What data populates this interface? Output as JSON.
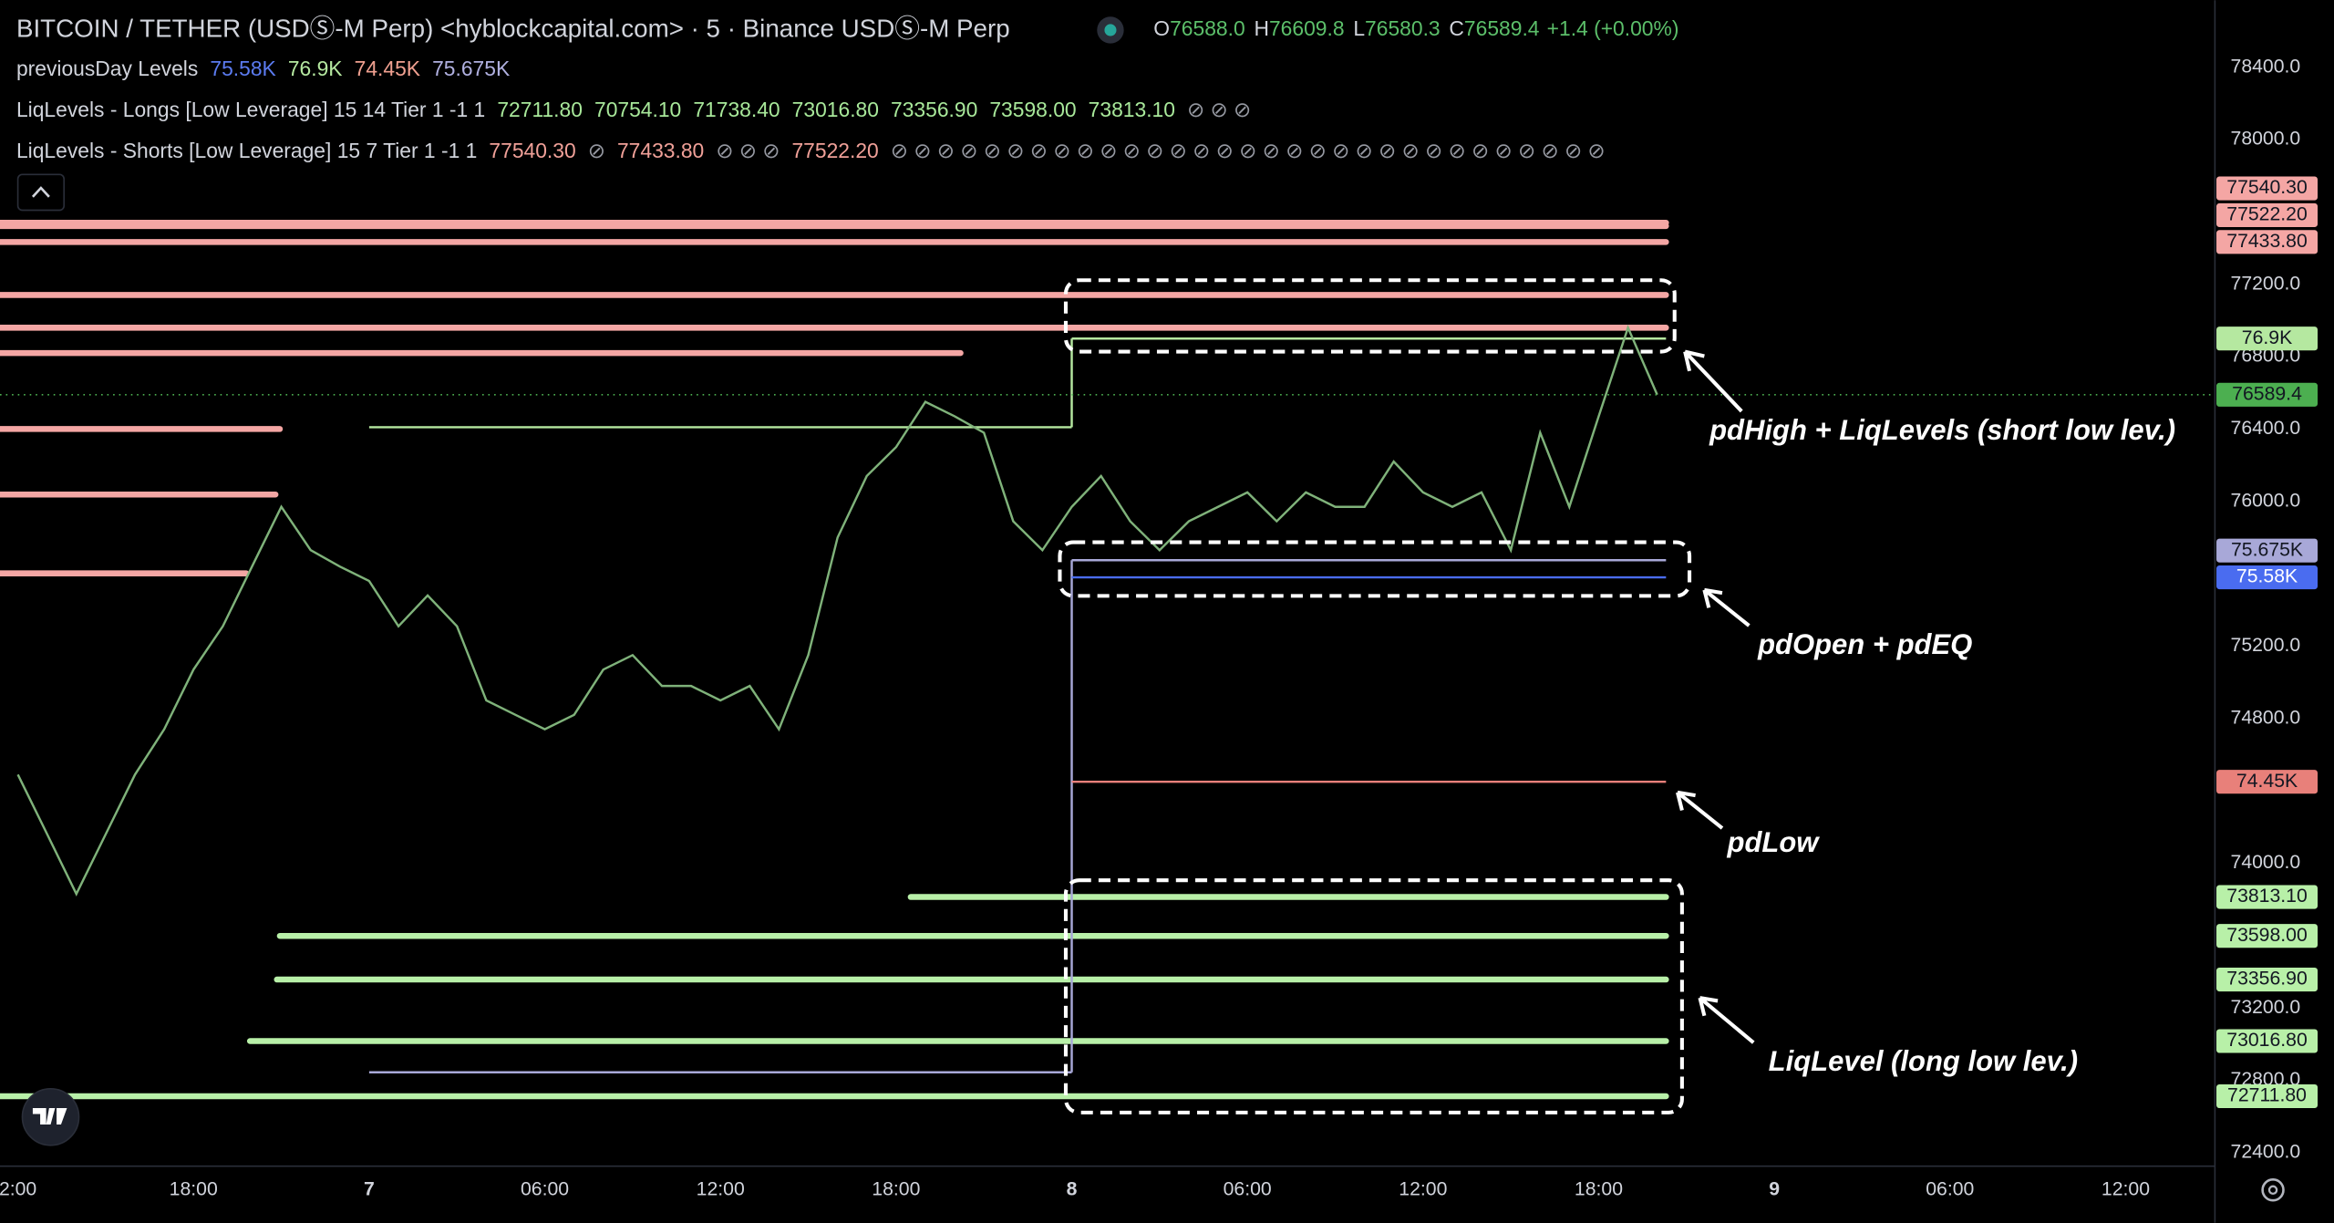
{
  "header": {
    "title": "BITCOIN / TETHER (USDⓈ-M Perp) <hyblockcapital.com> · 5 · Binance USDⓈ-M Perp",
    "ohlc": [
      {
        "key": "O",
        "value": "76588.0"
      },
      {
        "key": "H",
        "value": "76609.8"
      },
      {
        "key": "L",
        "value": "76580.3"
      },
      {
        "key": "C",
        "value": "76589.4"
      }
    ],
    "change": "+1.4 (+0.00%)"
  },
  "legend_rows": [
    {
      "name": "previousDay Levels",
      "items": [
        {
          "text": "75.58K",
          "color": "#5b7bf0"
        },
        {
          "text": "76.9K",
          "color": "#b5e8a0"
        },
        {
          "text": "74.45K",
          "color": "#f0a090"
        },
        {
          "text": "75.675K",
          "color": "#b0b0e0"
        }
      ]
    },
    {
      "name": "LiqLevels - Longs [Low Leverage] 15 14 Tier 1 -1 1",
      "items": [
        {
          "text": "72711.80",
          "color": "#a8e89a"
        },
        {
          "text": "70754.10",
          "color": "#a8e89a"
        },
        {
          "text": "71738.40",
          "color": "#a8e89a"
        },
        {
          "text": "73016.80",
          "color": "#a8e89a"
        },
        {
          "text": "73356.90",
          "color": "#a8e89a"
        },
        {
          "text": "73598.00",
          "color": "#a8e89a"
        },
        {
          "text": "73813.10",
          "color": "#a8e89a"
        },
        {
          "text": "⊘ ⊘ ⊘",
          "color": "#9598a1"
        }
      ]
    },
    {
      "name": "LiqLevels - Shorts [Low Leverage] 15 7 Tier 1 -1 1",
      "items": [
        {
          "text": "77540.30",
          "color": "#f0a098"
        },
        {
          "text": "⊘",
          "color": "#9598a1"
        },
        {
          "text": "77433.80",
          "color": "#f0a098"
        },
        {
          "text": "⊘ ⊘ ⊘",
          "color": "#9598a1"
        },
        {
          "text": "77522.20",
          "color": "#f0a098"
        },
        {
          "text": "⊘ ⊘ ⊘ ⊘ ⊘ ⊘ ⊘ ⊘ ⊘ ⊘ ⊘ ⊘ ⊘ ⊘ ⊘ ⊘ ⊘ ⊘ ⊘ ⊘ ⊘ ⊘ ⊘ ⊘ ⊘ ⊘ ⊘ ⊘ ⊘ ⊘ ⊘",
          "color": "#9598a1"
        }
      ]
    }
  ],
  "annotations": [
    "pdHigh + LiqLevels (short low lev.)",
    "pdOpen + pdEQ",
    "pdLow",
    "LiqLevel (long low lev.)"
  ],
  "chart_data": {
    "type": "line",
    "x": [
      -12,
      -11,
      -10,
      -9,
      -8,
      -7,
      -6,
      -5,
      -4,
      -3,
      -2,
      -1,
      0,
      1,
      2,
      3,
      4,
      5,
      6,
      7,
      8,
      9,
      10,
      11,
      12,
      13,
      14,
      15,
      16,
      17,
      18,
      19,
      20,
      21,
      22,
      23,
      24,
      25,
      26,
      27,
      28,
      29,
      30,
      31,
      32,
      33,
      34,
      35,
      36,
      37,
      38,
      39,
      40,
      41,
      42,
      43,
      44
    ],
    "series": [
      {
        "color": "#7fb27a",
        "values": [
          74490,
          74160,
          73830,
          74160,
          74490,
          74740,
          75070,
          75310,
          75640,
          75970,
          75730,
          75640,
          75560,
          75310,
          75480,
          75310,
          74900,
          74820,
          74740,
          74820,
          75070,
          75150,
          74980,
          74980,
          74900,
          74980,
          74740,
          75150,
          75800,
          76140,
          76300,
          76550,
          76470,
          76380,
          75890,
          75730,
          75970,
          76140,
          75890,
          75730,
          75890,
          75970,
          76050,
          75890,
          76050,
          75970,
          75970,
          76220,
          76050,
          75970,
          76050,
          75730,
          76380,
          75970,
          76470,
          76960,
          76589.4
        ]
      }
    ],
    "xlim": [
      -12.61,
      63.05
    ],
    "ylim": [
      72350,
      78770
    ],
    "xticks": [
      {
        "value": -12,
        "label": "2:00"
      },
      {
        "value": -6,
        "label": "18:00"
      },
      {
        "value": 0,
        "label": "7"
      },
      {
        "value": 6,
        "label": "06:00"
      },
      {
        "value": 12,
        "label": "12:00"
      },
      {
        "value": 18,
        "label": "18:00"
      },
      {
        "value": 24,
        "label": "8"
      },
      {
        "value": 30,
        "label": "06:00"
      },
      {
        "value": 36,
        "label": "12:00"
      },
      {
        "value": 42,
        "label": "18:00"
      },
      {
        "value": 48,
        "label": "9"
      },
      {
        "value": 54,
        "label": "06:00"
      },
      {
        "value": 60,
        "label": "12:00"
      }
    ],
    "yticks": [
      {
        "value": 78400,
        "label": "78400.0"
      },
      {
        "value": 78000,
        "label": "78000.0"
      },
      {
        "value": 77200,
        "label": "77200.0"
      },
      {
        "value": 76800,
        "label": "76800.0"
      },
      {
        "value": 76400,
        "label": "76400.0"
      },
      {
        "value": 76000,
        "label": "76000.0"
      },
      {
        "value": 75200,
        "label": "75200.0"
      },
      {
        "value": 74800,
        "label": "74800.0"
      },
      {
        "value": 74000,
        "label": "74000.0"
      },
      {
        "value": 73200,
        "label": "73200.0"
      },
      {
        "value": 72800,
        "label": "72800.0"
      },
      {
        "value": 72400,
        "label": "72400.0"
      }
    ],
    "grid": false,
    "liq_shorts": {
      "color": "#f4a6a4",
      "levels": [
        {
          "value": 77540.3,
          "label": "77540.30",
          "from": -12.61,
          "to": 44.3
        },
        {
          "value": 77522.2,
          "label": "77522.20",
          "from": -12.61,
          "to": 44.3
        },
        {
          "value": 77433.8,
          "label": "77433.80",
          "from": -12.61,
          "to": 44.3
        },
        {
          "value": 77141,
          "from": -12.61,
          "to": 44.3
        },
        {
          "value": 76960,
          "from": -12.61,
          "to": 44.3
        },
        {
          "value": 76820,
          "from": -12.61,
          "to": 20.2
        },
        {
          "value": 76400,
          "from": -12.61,
          "to": -3.05
        },
        {
          "value": 76038,
          "from": -12.61,
          "to": -3.2
        },
        {
          "value": 75602,
          "from": -12.61,
          "to": -4.2
        }
      ]
    },
    "liq_longs": {
      "color": "#b8f0a8",
      "levels": [
        {
          "value": 73813.1,
          "label": "73813.10",
          "from": 18.5,
          "to": 44.3
        },
        {
          "value": 73598,
          "label": "73598.00",
          "from": -3.05,
          "to": 44.3
        },
        {
          "value": 73356.9,
          "label": "73356.90",
          "from": -3.15,
          "to": 44.3
        },
        {
          "value": 73016.8,
          "label": "73016.80",
          "from": -4.07,
          "to": 44.3
        },
        {
          "value": 72711.8,
          "label": "72711.80",
          "from": -12.61,
          "to": 44.3
        }
      ]
    },
    "previous_day": [
      {
        "color": "#b5e8a0",
        "label_color": "#131722",
        "segments": [
          {
            "value": 76410,
            "from": 0,
            "to": 24
          },
          {
            "value": 76900,
            "from": 24,
            "to": 44.3,
            "label": "76.9K"
          }
        ]
      },
      {
        "color": "#a8a8d8",
        "label_color": "#131722",
        "segments": [
          {
            "value": 72844,
            "from": 0,
            "to": 24
          },
          {
            "value": 75675,
            "from": 24,
            "to": 44.3,
            "label": "75.675K"
          }
        ]
      },
      {
        "color": "#4a6cf0",
        "label_color": "#ffffff",
        "segments": [
          {
            "value": 75580,
            "from": 24,
            "to": 44.3,
            "label": "75.58K"
          }
        ]
      },
      {
        "color": "#e8807a",
        "label_color": "#131722",
        "segments": [
          {
            "value": 74450,
            "from": 24,
            "to": 44.3,
            "label": "74.45K"
          }
        ]
      }
    ],
    "last_price": {
      "value": 76589.4,
      "color": "#4caf50"
    }
  }
}
